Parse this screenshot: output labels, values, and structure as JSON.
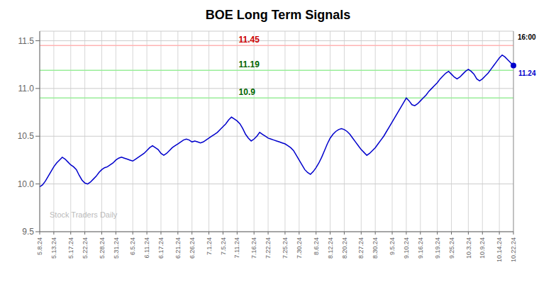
{
  "chart_data": {
    "type": "line",
    "title": "BOE Long Term Signals",
    "color": "#0000cc",
    "grid": true,
    "ylim": [
      9.5,
      11.6
    ],
    "yticks": [
      9.5,
      {
        "value": 10,
        "label": "10.0"
      },
      10.5,
      {
        "value": 11,
        "label": "11.0"
      },
      11.5
    ],
    "categories": [
      "5.8.24",
      null,
      null,
      null,
      null,
      "5.13.24",
      null,
      null,
      null,
      null,
      null,
      "5.17.24",
      null,
      null,
      null,
      null,
      "5.22.24",
      null,
      null,
      null,
      null,
      null,
      "5.28.24",
      null,
      null,
      null,
      null,
      "5.31.24",
      null,
      null,
      null,
      null,
      null,
      "6.5.24",
      null,
      null,
      null,
      null,
      "6.11.24",
      null,
      null,
      null,
      null,
      "6.17.24",
      null,
      null,
      null,
      null,
      null,
      "6.21.24",
      null,
      null,
      null,
      null,
      "6.26.24",
      null,
      null,
      null,
      null,
      null,
      "7.1.24",
      null,
      null,
      null,
      null,
      "7.5.24",
      null,
      null,
      null,
      null,
      "7.11.24",
      null,
      null,
      null,
      null,
      null,
      "7.16.24",
      null,
      null,
      null,
      null,
      "7.22.24",
      null,
      null,
      null,
      null,
      null,
      "7.25.24",
      null,
      null,
      null,
      null,
      "7.30.24",
      null,
      null,
      null,
      null,
      null,
      "8.6.24",
      null,
      null,
      null,
      null,
      "8.12.24",
      null,
      null,
      null,
      null,
      "8.20.24",
      null,
      null,
      null,
      null,
      null,
      "8.27.24",
      null,
      null,
      null,
      null,
      "8.30.24",
      null,
      null,
      null,
      null,
      null,
      "9.5.24",
      null,
      null,
      null,
      null,
      "9.10.24",
      null,
      null,
      null,
      null,
      "9.16.24",
      null,
      null,
      null,
      null,
      null,
      "9.19.24",
      null,
      null,
      null,
      null,
      "9.25.24",
      null,
      null,
      null,
      null,
      null,
      "10.3.24",
      null,
      null,
      null,
      null,
      "10.9.24",
      null,
      null,
      null,
      null,
      null,
      "10.14.24",
      null,
      null,
      null,
      null,
      "10.22.24"
    ],
    "values": [
      9.97,
      9.99,
      10.03,
      10.08,
      10.13,
      10.18,
      10.22,
      10.25,
      10.28,
      10.26,
      10.23,
      10.2,
      10.18,
      10.15,
      10.09,
      10.04,
      10.01,
      10.0,
      10.02,
      10.05,
      10.08,
      10.12,
      10.15,
      10.17,
      10.18,
      10.2,
      10.22,
      10.25,
      10.27,
      10.28,
      10.27,
      10.26,
      10.25,
      10.24,
      10.26,
      10.28,
      10.3,
      10.32,
      10.35,
      10.38,
      10.4,
      10.38,
      10.36,
      10.32,
      10.3,
      10.32,
      10.35,
      10.38,
      10.4,
      10.42,
      10.44,
      10.46,
      10.47,
      10.46,
      10.44,
      10.45,
      10.44,
      10.43,
      10.44,
      10.46,
      10.48,
      10.5,
      10.52,
      10.54,
      10.57,
      10.6,
      10.63,
      10.67,
      10.7,
      10.68,
      10.66,
      10.63,
      10.58,
      10.52,
      10.48,
      10.45,
      10.47,
      10.5,
      10.54,
      10.52,
      10.5,
      10.48,
      10.47,
      10.46,
      10.45,
      10.44,
      10.43,
      10.42,
      10.4,
      10.38,
      10.35,
      10.3,
      10.25,
      10.2,
      10.15,
      10.12,
      10.1,
      10.13,
      10.17,
      10.22,
      10.28,
      10.35,
      10.42,
      10.48,
      10.52,
      10.55,
      10.57,
      10.58,
      10.57,
      10.55,
      10.52,
      10.48,
      10.44,
      10.4,
      10.36,
      10.33,
      10.3,
      10.32,
      10.35,
      10.38,
      10.42,
      10.46,
      10.5,
      10.55,
      10.6,
      10.65,
      10.7,
      10.75,
      10.8,
      10.85,
      10.9,
      10.87,
      10.83,
      10.82,
      10.84,
      10.87,
      10.9,
      10.93,
      10.97,
      11.0,
      11.03,
      11.06,
      11.1,
      11.13,
      11.16,
      11.18,
      11.15,
      11.12,
      11.1,
      11.12,
      11.15,
      11.18,
      11.2,
      11.18,
      11.15,
      11.1,
      11.08,
      11.1,
      11.13,
      11.16,
      11.2,
      11.24,
      11.28,
      11.32,
      11.35,
      11.33,
      11.3,
      11.27,
      11.24
    ],
    "hlines": [
      {
        "value": 11.45,
        "label": "11.45",
        "color": "#ffb3b3",
        "label_color": "#cc0000"
      },
      {
        "value": 11.19,
        "label": "11.19",
        "color": "#99ee99",
        "label_color": "#006600"
      },
      {
        "value": 10.9,
        "label": "10.9",
        "color": "#99ee99",
        "label_color": "#006600"
      }
    ],
    "annotations": [
      {
        "text": "16:00"
      },
      {
        "text": "11.24",
        "color": "#0000cc"
      }
    ],
    "watermark": {
      "text": "Stock Traders Daily",
      "color": "#bbbbbb"
    }
  }
}
